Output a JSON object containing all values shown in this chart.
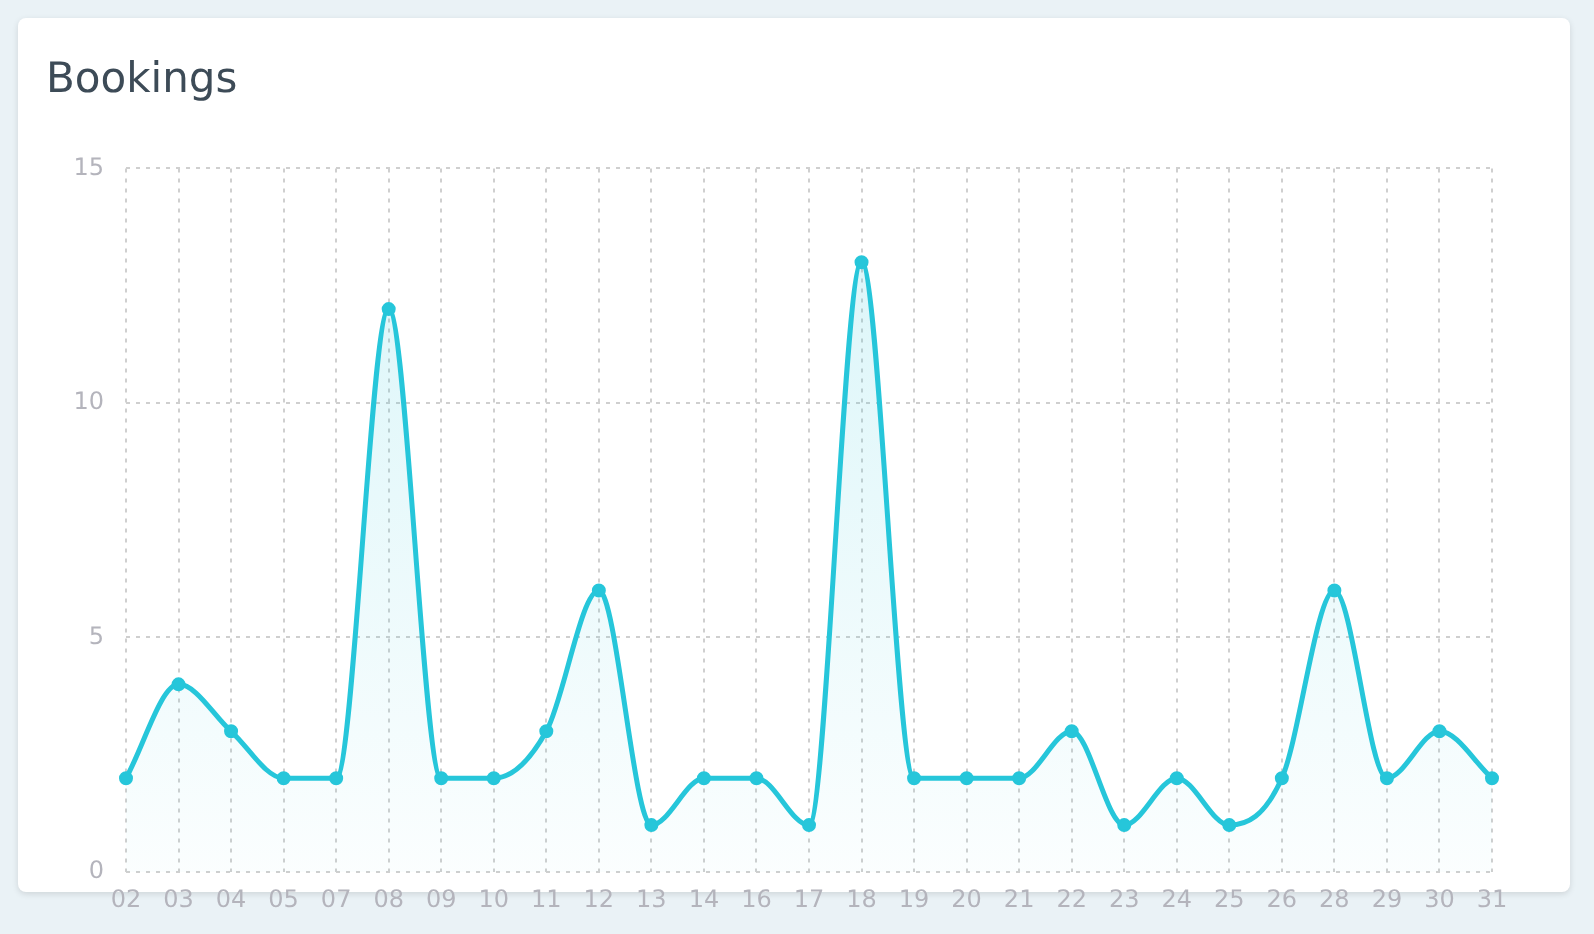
{
  "chart_data": {
    "type": "area",
    "title": "Bookings",
    "categories": [
      "02",
      "03",
      "04",
      "05",
      "07",
      "08",
      "09",
      "10",
      "11",
      "12",
      "13",
      "14",
      "16",
      "17",
      "18",
      "19",
      "20",
      "21",
      "22",
      "23",
      "24",
      "25",
      "26",
      "28",
      "29",
      "30",
      "31"
    ],
    "values": [
      2,
      4,
      3,
      2,
      2,
      12,
      2,
      2,
      3,
      6,
      1,
      2,
      2,
      1,
      13,
      2,
      2,
      2,
      3,
      1,
      2,
      1,
      2,
      6,
      2,
      3,
      2
    ],
    "color": "#26c6da",
    "ylim": [
      0,
      15
    ],
    "yticks": [
      0,
      5,
      10,
      15
    ],
    "grid": true,
    "legend": false,
    "marker": "circle",
    "line_style": "solid"
  }
}
